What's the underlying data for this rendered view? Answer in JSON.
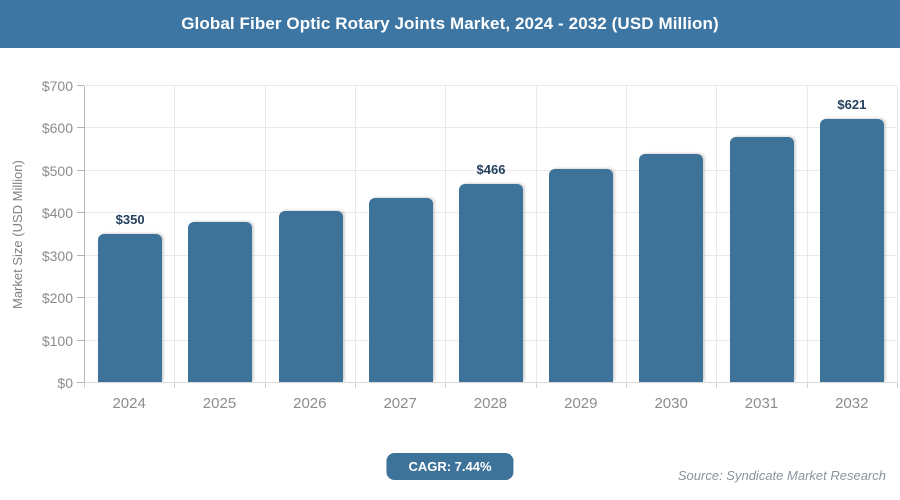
{
  "header": {
    "title": "Global Fiber Optic Rotary Joints Market, 2024 - 2032 (USD Million)"
  },
  "chart_data": {
    "type": "bar",
    "title": "Global Fiber Optic Rotary Joints Market, 2024 - 2032 (USD Million)",
    "ylabel": "Market Size (USD Million)",
    "xlabel": "",
    "ylim": [
      0,
      700
    ],
    "ytick_step": 100,
    "ytick_labels": [
      "$0",
      "$100",
      "$200",
      "$300",
      "$400",
      "$500",
      "$600",
      "$700"
    ],
    "grid": true,
    "legend": "none",
    "categories": [
      "2024",
      "2025",
      "2026",
      "2027",
      "2028",
      "2029",
      "2030",
      "2031",
      "2032"
    ],
    "values": [
      350,
      376,
      404,
      434,
      466,
      501,
      538,
      578,
      621
    ],
    "data_labels": [
      "$350",
      null,
      null,
      null,
      "$466",
      null,
      null,
      null,
      "$621"
    ]
  },
  "footer": {
    "cagr_label": "CAGR: 7.44%",
    "source": "Source: Syndicate Market Research"
  },
  "colors": {
    "header_bg": "#3e76a3",
    "bar": "#3d7398",
    "badge_bg": "#3d7398",
    "data_label_text": "#24405e",
    "axis_text": "#8c8c8c",
    "grid_line": "#e9e9e9",
    "axis_line": "#b5b5b5",
    "source_text": "#8b949b"
  }
}
